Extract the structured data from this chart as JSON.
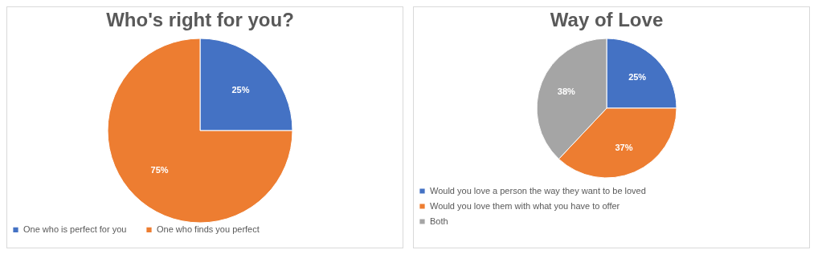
{
  "chart_data": [
    {
      "type": "pie",
      "title": "Who's right for you?",
      "categories": [
        "One who is perfect for you",
        "One who finds you perfect"
      ],
      "values": [
        25,
        75
      ],
      "colors": [
        "#4472c4",
        "#ed7d31"
      ],
      "value_labels": [
        "25%",
        "75%"
      ],
      "legend": "bottom"
    },
    {
      "type": "pie",
      "title": "Way of Love",
      "categories": [
        "Would you love a person the way they want to be loved",
        "Would you love them with what you have to offer",
        "Both"
      ],
      "values": [
        25,
        37,
        38
      ],
      "colors": [
        "#4472c4",
        "#ed7d31",
        "#a5a5a5"
      ],
      "value_labels": [
        "25%",
        "37%",
        "38%"
      ],
      "legend": "bottom"
    }
  ]
}
